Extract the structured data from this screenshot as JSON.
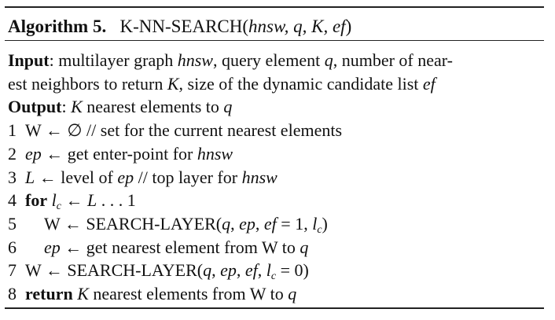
{
  "title": {
    "runs": [
      {
        "t": "Algorithm 5.",
        "s": "b"
      },
      {
        "t": "   K-NN-SEARCH("
      },
      {
        "t": "hnsw, q, K, ef",
        "s": "i"
      },
      {
        "t": ")"
      }
    ]
  },
  "lines": [
    {
      "runs": [
        {
          "t": "Input",
          "s": "b"
        },
        {
          "t": ": multilayer graph "
        },
        {
          "t": "hnsw",
          "s": "i"
        },
        {
          "t": ", query element "
        },
        {
          "t": "q",
          "s": "i"
        },
        {
          "t": ", number of near-"
        }
      ]
    },
    {
      "runs": [
        {
          "t": "est neighbors to return "
        },
        {
          "t": "K",
          "s": "i"
        },
        {
          "t": ", size of the dynamic candidate list "
        },
        {
          "t": "ef",
          "s": "i"
        }
      ]
    },
    {
      "runs": [
        {
          "t": "Output",
          "s": "b"
        },
        {
          "t": ": "
        },
        {
          "t": "K",
          "s": "i"
        },
        {
          "t": " nearest elements to "
        },
        {
          "t": "q",
          "s": "i"
        }
      ]
    },
    {
      "number": "1",
      "runs": [
        {
          "t": "W ← ∅ // set for the current nearest elements"
        }
      ]
    },
    {
      "number": "2",
      "runs": [
        {
          "t": "ep",
          "s": "i"
        },
        {
          "t": " ← get enter-point for "
        },
        {
          "t": "hnsw",
          "s": "i"
        }
      ]
    },
    {
      "number": "3",
      "runs": [
        {
          "t": "L",
          "s": "i"
        },
        {
          "t": " ← level of "
        },
        {
          "t": "ep",
          "s": "i"
        },
        {
          "t": " // top layer for "
        },
        {
          "t": "hnsw",
          "s": "i"
        }
      ]
    },
    {
      "number": "4",
      "runs": [
        {
          "t": "for",
          "s": "b"
        },
        {
          "t": " "
        },
        {
          "t": "l",
          "s": "i"
        },
        {
          "t": "c",
          "s": "sub"
        },
        {
          "t": " ← "
        },
        {
          "t": "L",
          "s": "i"
        },
        {
          "t": " . . . 1"
        }
      ]
    },
    {
      "number": "5",
      "indent": 1,
      "runs": [
        {
          "t": "W ← SEARCH-LAYER("
        },
        {
          "t": "q",
          "s": "i"
        },
        {
          "t": ", "
        },
        {
          "t": "ep",
          "s": "i"
        },
        {
          "t": ", "
        },
        {
          "t": "ef",
          "s": "i"
        },
        {
          "t": " = 1, "
        },
        {
          "t": "l",
          "s": "i"
        },
        {
          "t": "c",
          "s": "sub"
        },
        {
          "t": ")"
        }
      ]
    },
    {
      "number": "6",
      "indent": 1,
      "runs": [
        {
          "t": "ep",
          "s": "i"
        },
        {
          "t": " ← get nearest element from W to "
        },
        {
          "t": "q",
          "s": "i"
        }
      ]
    },
    {
      "number": "7",
      "runs": [
        {
          "t": "W ← SEARCH-LAYER("
        },
        {
          "t": "q",
          "s": "i"
        },
        {
          "t": ", "
        },
        {
          "t": "ep",
          "s": "i"
        },
        {
          "t": ", "
        },
        {
          "t": "ef",
          "s": "i"
        },
        {
          "t": ", "
        },
        {
          "t": "l",
          "s": "i"
        },
        {
          "t": "c",
          "s": "sub"
        },
        {
          "t": " = 0)"
        }
      ]
    },
    {
      "number": "8",
      "runs": [
        {
          "t": "return",
          "s": "b"
        },
        {
          "t": " "
        },
        {
          "t": "K",
          "s": "i"
        },
        {
          "t": " nearest elements from W to "
        },
        {
          "t": "q",
          "s": "i"
        }
      ]
    }
  ]
}
